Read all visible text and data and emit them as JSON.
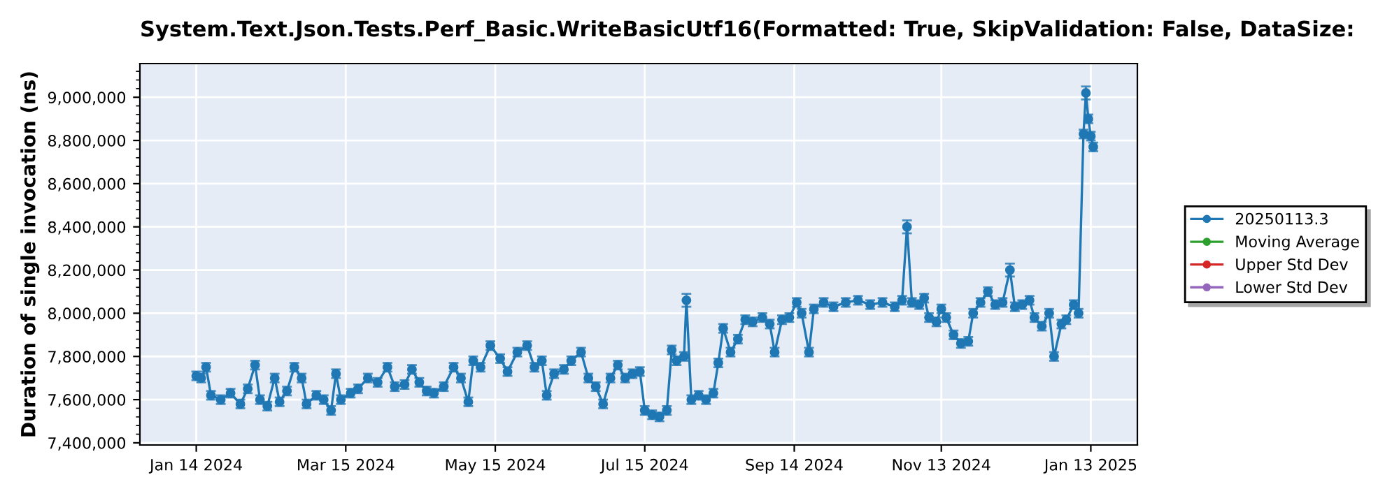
{
  "chart_data": {
    "type": "line",
    "title": "System.Text.Json.Tests.Perf_Basic.WriteBasicUtf16(Formatted: True, SkipValidation: False, DataSize:",
    "ylabel": "Duration of single invocation (ns)",
    "xlim": [
      "2023-12-22",
      "2025-02-01"
    ],
    "xticks": [
      {
        "value": "2024-01-14",
        "label": "Jan 14 2024"
      },
      {
        "value": "2024-03-15",
        "label": "Mar 15 2024"
      },
      {
        "value": "2024-05-15",
        "label": "May 15 2024"
      },
      {
        "value": "2024-07-15",
        "label": "Jul 15 2024"
      },
      {
        "value": "2024-09-14",
        "label": "Sep 14 2024"
      },
      {
        "value": "2024-11-13",
        "label": "Nov 13 2024"
      },
      {
        "value": "2025-01-13",
        "label": "Jan 13 2025"
      }
    ],
    "ylim": [
      7390000,
      9156000
    ],
    "yticks": [
      {
        "value": 7400000,
        "label": "7,400,000"
      },
      {
        "value": 7600000,
        "label": "7,600,000"
      },
      {
        "value": 7800000,
        "label": "7,800,000"
      },
      {
        "value": 8000000,
        "label": "8,000,000"
      },
      {
        "value": 8200000,
        "label": "8,200,000"
      },
      {
        "value": 8400000,
        "label": "8,400,000"
      },
      {
        "value": 8600000,
        "label": "8,600,000"
      },
      {
        "value": 8800000,
        "label": "8,800,000"
      },
      {
        "value": 9000000,
        "label": "9,000,000"
      }
    ],
    "grid": true,
    "legend": "right",
    "marker": "circle",
    "line_style": "solid",
    "series": [
      {
        "name": "20250113.3",
        "color": "#1f77b4",
        "x": [
          "2024-01-14",
          "2024-01-16",
          "2024-01-18",
          "2024-01-20",
          "2024-01-24",
          "2024-01-28",
          "2024-02-01",
          "2024-02-04",
          "2024-02-07",
          "2024-02-09",
          "2024-02-12",
          "2024-02-15",
          "2024-02-17",
          "2024-02-20",
          "2024-02-23",
          "2024-02-26",
          "2024-02-28",
          "2024-03-03",
          "2024-03-06",
          "2024-03-09",
          "2024-03-11",
          "2024-03-13",
          "2024-03-17",
          "2024-03-20",
          "2024-03-24",
          "2024-03-28",
          "2024-04-01",
          "2024-04-04",
          "2024-04-08",
          "2024-04-11",
          "2024-04-14",
          "2024-04-17",
          "2024-04-20",
          "2024-04-24",
          "2024-04-28",
          "2024-05-01",
          "2024-05-04",
          "2024-05-06",
          "2024-05-09",
          "2024-05-13",
          "2024-05-17",
          "2024-05-20",
          "2024-05-24",
          "2024-05-28",
          "2024-05-31",
          "2024-06-03",
          "2024-06-05",
          "2024-06-08",
          "2024-06-12",
          "2024-06-15",
          "2024-06-19",
          "2024-06-22",
          "2024-06-25",
          "2024-06-28",
          "2024-07-01",
          "2024-07-04",
          "2024-07-07",
          "2024-07-10",
          "2024-07-13",
          "2024-07-15",
          "2024-07-18",
          "2024-07-21",
          "2024-07-24",
          "2024-07-26",
          "2024-07-28",
          "2024-07-31",
          "2024-08-01",
          "2024-08-03",
          "2024-08-06",
          "2024-08-09",
          "2024-08-12",
          "2024-08-14",
          "2024-08-16",
          "2024-08-19",
          "2024-08-22",
          "2024-08-25",
          "2024-08-28",
          "2024-09-01",
          "2024-09-04",
          "2024-09-06",
          "2024-09-09",
          "2024-09-12",
          "2024-09-15",
          "2024-09-17",
          "2024-09-20",
          "2024-09-22",
          "2024-09-26",
          "2024-09-30",
          "2024-10-05",
          "2024-10-10",
          "2024-10-15",
          "2024-10-20",
          "2024-10-25",
          "2024-10-28",
          "2024-10-30",
          "2024-11-01",
          "2024-11-04",
          "2024-11-06",
          "2024-11-08",
          "2024-11-11",
          "2024-11-13",
          "2024-11-15",
          "2024-11-18",
          "2024-11-21",
          "2024-11-24",
          "2024-11-26",
          "2024-11-29",
          "2024-12-02",
          "2024-12-05",
          "2024-12-08",
          "2024-12-11",
          "2024-12-13",
          "2024-12-16",
          "2024-12-19",
          "2024-12-21",
          "2024-12-24",
          "2024-12-27",
          "2024-12-29",
          "2025-01-01",
          "2025-01-03",
          "2025-01-06",
          "2025-01-08",
          "2025-01-10",
          "2025-01-11",
          "2025-01-12",
          "2025-01-13",
          "2025-01-14"
        ],
        "values": [
          7710000,
          7700000,
          7750000,
          7620000,
          7600000,
          7630000,
          7580000,
          7650000,
          7760000,
          7600000,
          7570000,
          7700000,
          7590000,
          7640000,
          7750000,
          7700000,
          7580000,
          7620000,
          7600000,
          7550000,
          7720000,
          7600000,
          7630000,
          7650000,
          7700000,
          7680000,
          7750000,
          7660000,
          7670000,
          7740000,
          7680000,
          7640000,
          7630000,
          7660000,
          7750000,
          7700000,
          7590000,
          7780000,
          7750000,
          7850000,
          7790000,
          7730000,
          7820000,
          7850000,
          7750000,
          7780000,
          7620000,
          7720000,
          7740000,
          7780000,
          7820000,
          7700000,
          7660000,
          7580000,
          7700000,
          7760000,
          7700000,
          7720000,
          7730000,
          7550000,
          7530000,
          7520000,
          7550000,
          7830000,
          7780000,
          7800000,
          8060000,
          7600000,
          7620000,
          7600000,
          7630000,
          7770000,
          7930000,
          7820000,
          7880000,
          7970000,
          7960000,
          7980000,
          7950000,
          7820000,
          7970000,
          7980000,
          8050000,
          8000000,
          7820000,
          8020000,
          8050000,
          8030000,
          8050000,
          8060000,
          8040000,
          8050000,
          8030000,
          8060000,
          8400000,
          8050000,
          8040000,
          8070000,
          7980000,
          7960000,
          8020000,
          7980000,
          7900000,
          7860000,
          7870000,
          8000000,
          8050000,
          8100000,
          8040000,
          8050000,
          8200000,
          8030000,
          8040000,
          8060000,
          7980000,
          7940000,
          8000000,
          7800000,
          7950000,
          7970000,
          8040000,
          8000000,
          8830000,
          9020000,
          8900000,
          8820000,
          8770000
        ],
        "errors": [
          20000,
          20000,
          20000,
          20000,
          20000,
          20000,
          20000,
          20000,
          20000,
          20000,
          20000,
          20000,
          20000,
          20000,
          20000,
          20000,
          20000,
          20000,
          20000,
          20000,
          20000,
          20000,
          20000,
          20000,
          20000,
          20000,
          20000,
          20000,
          20000,
          20000,
          20000,
          20000,
          20000,
          20000,
          20000,
          20000,
          20000,
          20000,
          20000,
          20000,
          20000,
          20000,
          20000,
          20000,
          20000,
          20000,
          20000,
          20000,
          20000,
          20000,
          20000,
          20000,
          20000,
          20000,
          20000,
          20000,
          20000,
          20000,
          20000,
          20000,
          20000,
          20000,
          20000,
          20000,
          20000,
          20000,
          30000,
          20000,
          20000,
          20000,
          20000,
          20000,
          20000,
          20000,
          20000,
          20000,
          20000,
          20000,
          20000,
          20000,
          20000,
          20000,
          20000,
          20000,
          20000,
          20000,
          20000,
          20000,
          20000,
          20000,
          20000,
          20000,
          20000,
          20000,
          30000,
          20000,
          20000,
          20000,
          20000,
          20000,
          20000,
          20000,
          20000,
          20000,
          20000,
          20000,
          20000,
          20000,
          20000,
          20000,
          30000,
          20000,
          20000,
          20000,
          20000,
          20000,
          20000,
          20000,
          20000,
          20000,
          20000,
          20000,
          20000,
          30000,
          20000,
          20000,
          20000
        ]
      },
      {
        "name": "Moving Average",
        "color": "#2ca02c"
      },
      {
        "name": "Upper Std Dev",
        "color": "#d62728"
      },
      {
        "name": "Lower Std Dev",
        "color": "#9467bd"
      }
    ]
  }
}
